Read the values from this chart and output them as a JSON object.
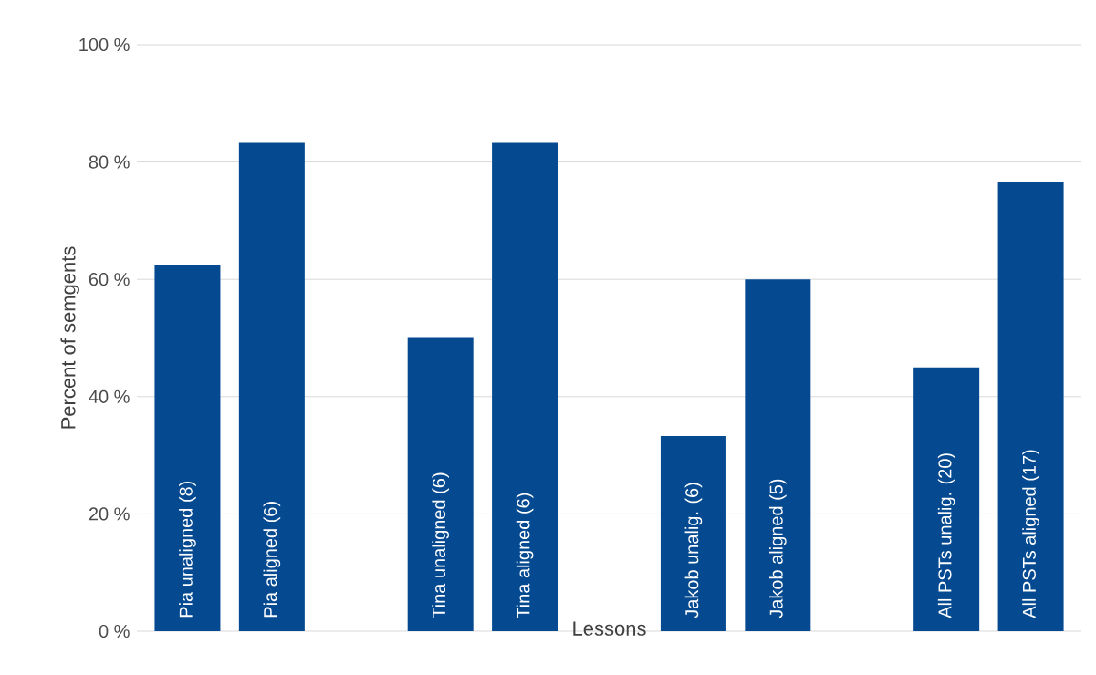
{
  "chart_data": {
    "type": "bar",
    "xlabel": "Lessons",
    "ylabel": "Percent of semgents",
    "categories": [
      "Pia unaligned (8)",
      "Pia aligned (6)",
      null,
      "Tina unaligned (6)",
      "Tina aligned (6)",
      null,
      "Jakob unalig. (6)",
      "Jakob aligned (5)",
      null,
      "All PSTs unalig. (20)",
      "All PSTs aligned (17)"
    ],
    "values": [
      62.5,
      83.3,
      null,
      50,
      83.3,
      null,
      33.3,
      60,
      null,
      45,
      76.5
    ],
    "color": "#054a91",
    "ylim": [
      0,
      100
    ],
    "yticks": [
      {
        "value": 0,
        "label": "0 %"
      },
      {
        "value": 20,
        "label": "20 %"
      },
      {
        "value": 40,
        "label": "40 %"
      },
      {
        "value": 60,
        "label": "60 %"
      },
      {
        "value": 80,
        "label": "80 %"
      },
      {
        "value": 100,
        "label": "100 %"
      }
    ],
    "grid": "y"
  }
}
